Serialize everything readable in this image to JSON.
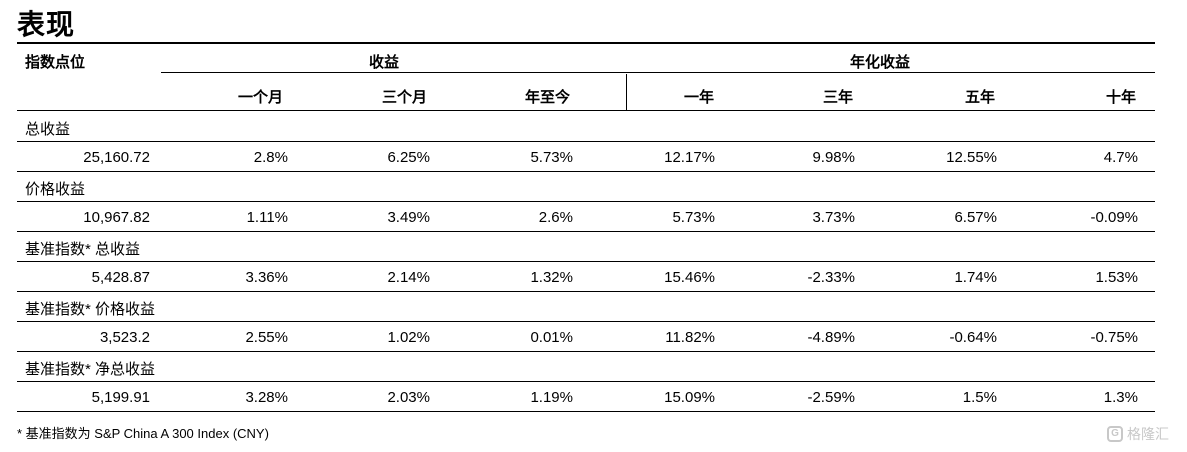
{
  "title": "表现",
  "header": {
    "index_level": "指数点位",
    "returns": "收益",
    "annualized": "年化收益",
    "periods": [
      "一个月",
      "三个月",
      "年至今",
      "一年",
      "三年",
      "五年",
      "十年"
    ]
  },
  "groups": [
    {
      "label": "总收益",
      "level": "25,160.72",
      "values": [
        "2.8%",
        "6.25%",
        "5.73%",
        "12.17%",
        "9.98%",
        "12.55%",
        "4.7%"
      ]
    },
    {
      "label": "价格收益",
      "level": "10,967.82",
      "values": [
        "1.11%",
        "3.49%",
        "2.6%",
        "5.73%",
        "3.73%",
        "6.57%",
        "-0.09%"
      ]
    },
    {
      "label": "基准指数* 总收益",
      "level": "5,428.87",
      "values": [
        "3.36%",
        "2.14%",
        "1.32%",
        "15.46%",
        "-2.33%",
        "1.74%",
        "1.53%"
      ]
    },
    {
      "label": "基准指数* 价格收益",
      "level": "3,523.2",
      "values": [
        "2.55%",
        "1.02%",
        "0.01%",
        "11.82%",
        "-4.89%",
        "-0.64%",
        "-0.75%"
      ]
    },
    {
      "label": "基准指数* 净总收益",
      "level": "5,199.91",
      "values": [
        "3.28%",
        "2.03%",
        "1.19%",
        "15.09%",
        "-2.59%",
        "1.5%",
        "1.3%"
      ]
    }
  ],
  "footnote": "* 基准指数为 S&P China A 300 Index (CNY)",
  "watermark": "格隆汇",
  "watermark_icon": "G"
}
